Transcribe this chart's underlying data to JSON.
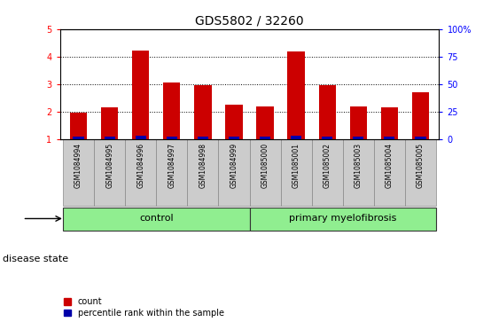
{
  "title": "GDS5802 / 32260",
  "samples": [
    "GSM1084994",
    "GSM1084995",
    "GSM1084996",
    "GSM1084997",
    "GSM1084998",
    "GSM1084999",
    "GSM1085000",
    "GSM1085001",
    "GSM1085002",
    "GSM1085003",
    "GSM1085004",
    "GSM1085005"
  ],
  "red_values": [
    1.95,
    2.15,
    4.22,
    3.07,
    2.95,
    2.25,
    2.2,
    4.18,
    2.95,
    2.2,
    2.15,
    2.72
  ],
  "blue_values": [
    0.08,
    0.1,
    0.12,
    0.1,
    0.08,
    0.08,
    0.1,
    0.12,
    0.1,
    0.08,
    0.08,
    0.08
  ],
  "control_indices": [
    0,
    1,
    2,
    3,
    4,
    5
  ],
  "myelo_indices": [
    6,
    7,
    8,
    9,
    10,
    11
  ],
  "ylim_left": [
    1,
    5
  ],
  "yticks_left": [
    1,
    2,
    3,
    4,
    5
  ],
  "yticks_right": [
    0,
    25,
    50,
    75,
    100
  ],
  "ytick_labels_right": [
    "0",
    "25",
    "50",
    "75",
    "100%"
  ],
  "bar_color_red": "#CC0000",
  "bar_color_blue": "#0000AA",
  "bar_width": 0.55,
  "blue_bar_width": 0.35,
  "baseline": 1.0,
  "bg_color": "#FFFFFF",
  "gray_box_color": "#CCCCCC",
  "green_color": "#90EE90",
  "legend_count_label": "count",
  "legend_percentile_label": "percentile rank within the sample",
  "disease_state_label": "disease state",
  "control_label": "control",
  "myelofibrosis_label": "primary myelofibrosis",
  "title_fontsize": 10,
  "tick_label_fontsize": 7,
  "annotation_fontsize": 8,
  "legend_fontsize": 7
}
